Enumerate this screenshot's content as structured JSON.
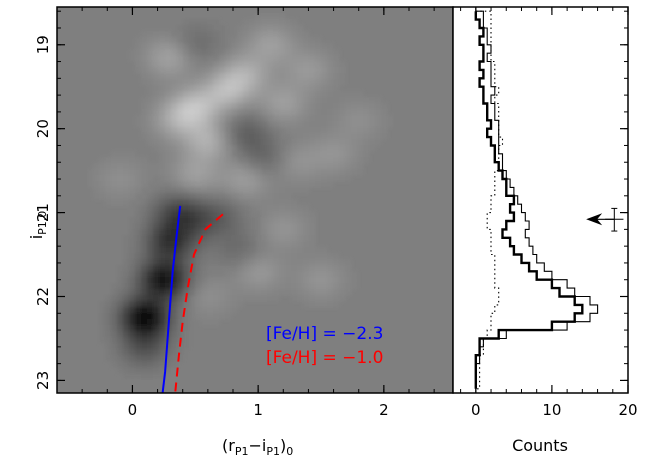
{
  "chart_data": [
    {
      "type": "heatmap",
      "panel": "left",
      "xlabel_main": "(r",
      "xlabel_sub1": "P1",
      "xlabel_mid": "−i",
      "xlabel_sub2": "P1",
      "xlabel_end": ")",
      "xlabel_sub3": "0",
      "ylabel_main": "i",
      "ylabel_sub": "P1,0",
      "xlim": [
        -0.6,
        2.55
      ],
      "ylim": [
        23.15,
        18.55
      ],
      "x_ticks": [
        "0",
        "1",
        "2"
      ],
      "x_tick_values": [
        0,
        1,
        2
      ],
      "y_ticks": [
        "19",
        "20",
        "21",
        "22",
        "23"
      ],
      "y_tick_values": [
        19,
        20,
        21,
        22,
        23
      ],
      "blobs": [
        {
          "x": 0.1,
          "y": 22.25,
          "amp": -110
        },
        {
          "x": 0.25,
          "y": 21.8,
          "amp": -100
        },
        {
          "x": 0.3,
          "y": 21.35,
          "amp": -70
        },
        {
          "x": 0.35,
          "y": 21.0,
          "amp": -45
        },
        {
          "x": 0.1,
          "y": 22.6,
          "amp": -40
        },
        {
          "x": 0.5,
          "y": 21.1,
          "amp": -30
        },
        {
          "x": 0.7,
          "y": 21.05,
          "amp": -25
        },
        {
          "x": 0.85,
          "y": 21.45,
          "amp": -20
        },
        {
          "x": 0.9,
          "y": 20.05,
          "amp": -30
        },
        {
          "x": 1.05,
          "y": 20.35,
          "amp": -25
        },
        {
          "x": 0.5,
          "y": 19.0,
          "amp": -20
        },
        {
          "x": 0.5,
          "y": 19.75,
          "amp": 55
        },
        {
          "x": 0.75,
          "y": 19.55,
          "amp": 50
        },
        {
          "x": 0.6,
          "y": 20.15,
          "amp": 45
        },
        {
          "x": 0.35,
          "y": 19.9,
          "amp": 35
        },
        {
          "x": 0.9,
          "y": 19.35,
          "amp": 40
        },
        {
          "x": 0.3,
          "y": 19.15,
          "amp": 35
        },
        {
          "x": 1.1,
          "y": 19.0,
          "amp": 30
        },
        {
          "x": 1.2,
          "y": 19.7,
          "amp": 30
        },
        {
          "x": 0.5,
          "y": 20.55,
          "amp": 30
        },
        {
          "x": 0.9,
          "y": 20.6,
          "amp": 30
        },
        {
          "x": 1.3,
          "y": 20.4,
          "amp": 20
        },
        {
          "x": 1.4,
          "y": 19.3,
          "amp": 25
        },
        {
          "x": 1.6,
          "y": 20.3,
          "amp": 20
        },
        {
          "x": 1.8,
          "y": 19.9,
          "amp": 15
        },
        {
          "x": 1.0,
          "y": 21.7,
          "amp": 25
        },
        {
          "x": 1.5,
          "y": 21.8,
          "amp": 20
        },
        {
          "x": 1.2,
          "y": 21.2,
          "amp": 20
        },
        {
          "x": 0.6,
          "y": 22.0,
          "amp": 15
        },
        {
          "x": -0.1,
          "y": 20.6,
          "amp": 15
        }
      ],
      "isochrones": [
        {
          "name": "[Fe/H] = −2.3",
          "color": "#0000ff",
          "style": "solid",
          "x": [
            0.38,
            0.35,
            0.32,
            0.3,
            0.28,
            0.26,
            0.24
          ],
          "y": [
            20.92,
            21.3,
            21.7,
            22.1,
            22.5,
            22.9,
            23.15
          ]
        },
        {
          "name": "[Fe/H] = −1.0",
          "color": "#ff0000",
          "style": "dashed",
          "x": [
            0.72,
            0.58,
            0.49,
            0.44,
            0.4,
            0.37,
            0.34
          ],
          "y": [
            21.02,
            21.2,
            21.5,
            21.9,
            22.3,
            22.7,
            23.15
          ]
        }
      ],
      "legend": [
        "[Fe/H] = −2.3",
        "[Fe/H] = −1.0"
      ],
      "legend_position": "bottom-right"
    },
    {
      "type": "line",
      "panel": "right",
      "xlabel": "Counts",
      "xlim": [
        -3,
        20
      ],
      "ylim": [
        23.15,
        18.55
      ],
      "x_ticks": [
        "0",
        "10",
        "20"
      ],
      "x_tick_values": [
        0,
        10,
        20
      ],
      "bin_edges": [
        18.6,
        18.7,
        18.8,
        18.9,
        19.0,
        19.1,
        19.2,
        19.3,
        19.4,
        19.5,
        19.6,
        19.7,
        19.8,
        19.9,
        20.0,
        20.1,
        20.2,
        20.3,
        20.4,
        20.5,
        20.6,
        20.7,
        20.8,
        20.9,
        21.0,
        21.1,
        21.2,
        21.3,
        21.4,
        21.5,
        21.6,
        21.7,
        21.8,
        21.9,
        22.0,
        22.1,
        22.2,
        22.3,
        22.4,
        22.5,
        22.6,
        22.7,
        22.8,
        22.9,
        23.0,
        23.1
      ],
      "series": [
        {
          "style": "thick",
          "values": [
            0,
            0.5,
            1,
            0.5,
            1,
            1,
            0.5,
            1,
            0.5,
            1,
            1,
            1.5,
            1.5,
            2,
            1.5,
            2,
            2.5,
            2.5,
            3,
            3.5,
            4,
            4,
            5,
            4.5,
            5,
            4,
            3.5,
            4.5,
            5,
            6,
            7,
            8,
            10,
            11,
            13,
            14,
            13,
            10,
            3,
            0.5,
            0.5,
            0,
            0,
            0,
            0
          ]
        },
        {
          "style": "thin",
          "values": [
            1,
            1,
            1.5,
            1.5,
            2,
            1.5,
            2,
            2,
            2,
            2.5,
            2,
            2.5,
            2.5,
            3,
            3,
            3,
            3,
            3.5,
            3.5,
            4,
            4.5,
            5,
            5.5,
            6,
            6.5,
            7,
            6.5,
            7,
            7.5,
            8,
            9,
            10,
            12,
            13,
            15,
            16,
            15,
            12,
            4,
            1,
            0.5,
            0.5,
            0,
            0,
            0
          ]
        },
        {
          "style": "dotted",
          "values": [
            2,
            2,
            2,
            2,
            2,
            2,
            2.5,
            2.5,
            2.5,
            3,
            2.5,
            3,
            3,
            3,
            3,
            3.5,
            3,
            3,
            3,
            2.5,
            2.5,
            2.5,
            2,
            2,
            1.5,
            1.5,
            2,
            2,
            2,
            2.5,
            2.5,
            2.5,
            2.5,
            3,
            3,
            2.5,
            2,
            2,
            1.5,
            1,
            1,
            0.5,
            0.5,
            0.5,
            0.5
          ]
        }
      ],
      "arrow": {
        "y": 21.08,
        "x_tip": 14.5,
        "x_tail": 18.2
      },
      "error_bar": {
        "x": 18.2,
        "y": 21.08,
        "ylow": 20.95,
        "yhigh": 21.22,
        "xlow": 17.0,
        "xhigh": 19.4
      }
    }
  ]
}
